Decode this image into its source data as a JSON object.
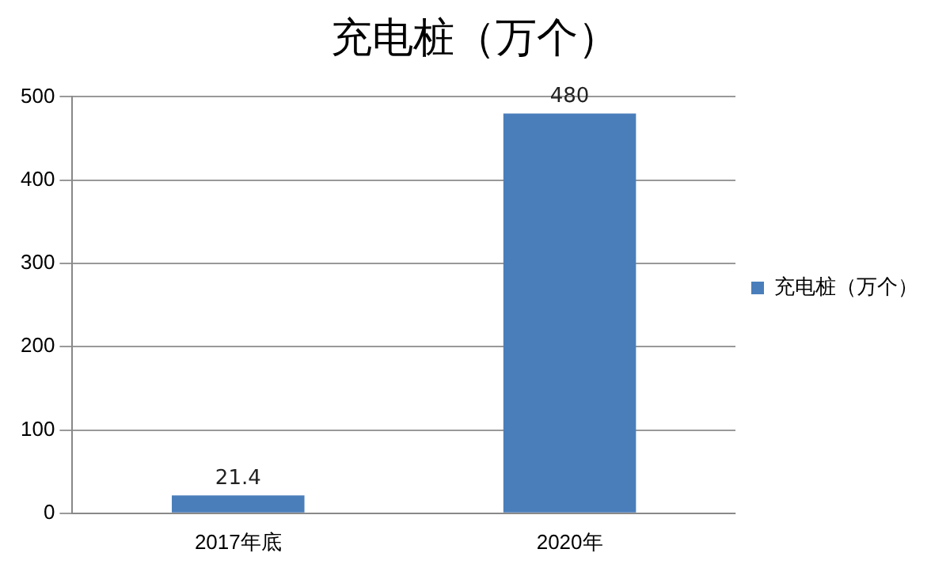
{
  "chart_data": {
    "type": "bar",
    "title": "充电桩（万个）",
    "categories": [
      "2017年底",
      "2020年"
    ],
    "series": [
      {
        "name": "充电桩（万个）",
        "color": "#4a7ebb",
        "values": [
          21.4,
          480
        ]
      }
    ],
    "ylim": [
      0,
      500
    ],
    "yticks": [
      0,
      100,
      200,
      300,
      400,
      500
    ],
    "grid": "y",
    "legend": "right",
    "data_labels": true
  }
}
